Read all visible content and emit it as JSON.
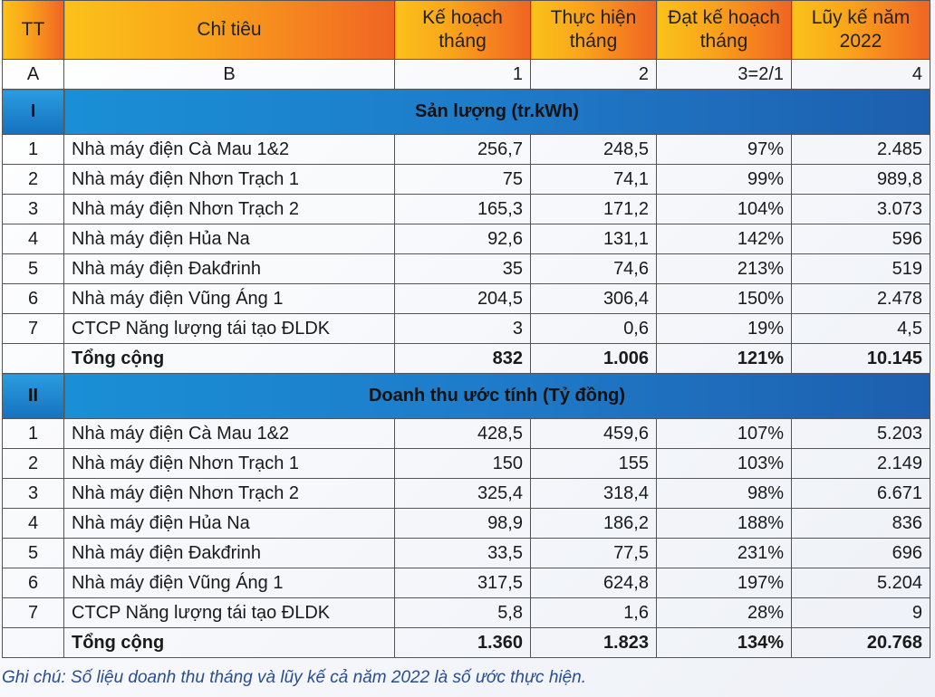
{
  "header": [
    "TT",
    "Chỉ tiêu",
    "Kế hoạch tháng",
    "Thực hiện tháng",
    "Đạt kế hoạch tháng",
    "Lũy kế năm 2022"
  ],
  "index_row": [
    "A",
    "B",
    "1",
    "2",
    "3=2/1",
    "4"
  ],
  "sections": [
    {
      "number": "I",
      "title": "Sản lượng (tr.kWh)",
      "rows": [
        [
          "1",
          "Nhà máy điện Cà Mau 1&2",
          "256,7",
          "248,5",
          "97%",
          "2.485"
        ],
        [
          "2",
          "Nhà máy điện Nhơn Trạch  1",
          "75",
          "74,1",
          "99%",
          "989,8"
        ],
        [
          "3",
          "Nhà máy điện Nhơn Trạch  2",
          "165,3",
          "171,2",
          "104%",
          "3.073"
        ],
        [
          "4",
          "Nhà máy điện Hủa Na",
          "92,6",
          "131,1",
          "142%",
          "596"
        ],
        [
          "5",
          "Nhà máy điện Đakđrinh",
          "35",
          "74,6",
          "213%",
          "519"
        ],
        [
          "6",
          "Nhà máy điện Vũng Áng 1",
          "204,5",
          "306,4",
          "150%",
          "2.478"
        ],
        [
          "7",
          "CTCP Năng lượng tái tạo ĐLDK",
          "3",
          "0,6",
          "19%",
          "4,5"
        ]
      ],
      "total": [
        "Tổng cộng",
        "832",
        "1.006",
        "121%",
        "10.145"
      ]
    },
    {
      "number": "II",
      "title": "Doanh thu ước tính (Tỷ đồng)",
      "rows": [
        [
          "1",
          "Nhà máy điện Cà Mau 1&2",
          "428,5",
          "459,6",
          "107%",
          "5.203"
        ],
        [
          "2",
          "Nhà máy điện Nhơn Trạch  1",
          "150",
          "155",
          "103%",
          "2.149"
        ],
        [
          "3",
          "Nhà máy điện Nhơn Trạch  2",
          "325,4",
          "318,4",
          "98%",
          "6.671"
        ],
        [
          "4",
          "Nhà máy điện Hủa Na",
          "98,9",
          "186,2",
          "188%",
          "836"
        ],
        [
          "5",
          "Nhà máy điện Đakđrinh",
          "33,5",
          "77,5",
          "231%",
          "696"
        ],
        [
          "6",
          "Nhà máy điện Vũng Áng 1",
          "317,5",
          "624,8",
          "197%",
          "5.204"
        ],
        [
          "7",
          "CTCP Năng lượng tái tạo ĐLDK",
          "5,8",
          "1,6",
          "28%",
          "9"
        ]
      ],
      "total": [
        "Tổng cộng",
        "1.360",
        "1.823",
        "134%",
        "20.768"
      ]
    }
  ],
  "note": "Ghi chú: Số liệu doanh thu tháng và lũy kế cả năm 2022 là số ước thực hiện."
}
